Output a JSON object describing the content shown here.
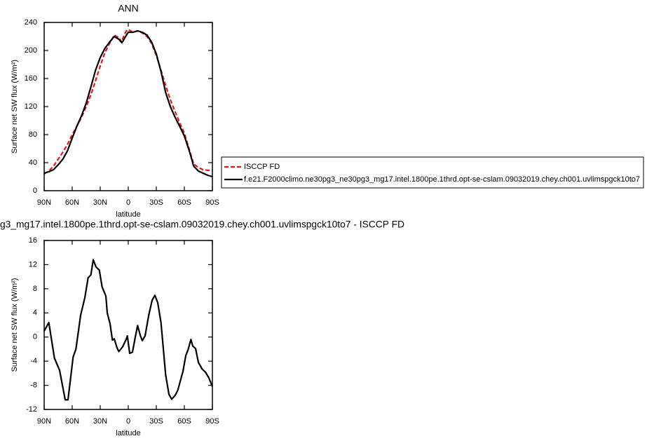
{
  "chart_data": [
    {
      "type": "line",
      "title": "ANN",
      "x_label": "latitude",
      "y_label": "Surface net SW flux (W/m²)",
      "xlim": [
        90,
        -90
      ],
      "xticks": [
        {
          "value": 90,
          "label": "90N"
        },
        {
          "value": 60,
          "label": "60N"
        },
        {
          "value": 30,
          "label": "30N"
        },
        0,
        {
          "value": -30,
          "label": "30S"
        },
        {
          "value": -60,
          "label": "60S"
        },
        {
          "value": -90,
          "label": "90S"
        }
      ],
      "ylim": [
        0,
        240
      ],
      "yticks": [
        0,
        40,
        80,
        120,
        160,
        200,
        240
      ],
      "x": [
        90,
        85,
        80,
        75,
        70,
        65,
        60,
        55,
        50,
        45,
        40,
        35,
        30,
        25,
        20,
        15,
        10,
        7,
        5,
        2,
        0,
        -5,
        -10,
        -15,
        -20,
        -25,
        -30,
        -35,
        -40,
        -45,
        -50,
        -55,
        -60,
        -65,
        -70,
        -75,
        -80,
        -85,
        -90
      ],
      "legend": "right",
      "series": [
        {
          "name": "ISCCP FD",
          "color": "#e8161d",
          "dashed": true,
          "values": [
            24,
            28,
            35,
            45,
            55,
            66,
            80,
            92,
            105,
            120,
            137,
            157,
            178,
            197,
            210,
            222,
            218,
            212,
            220,
            228,
            230,
            226,
            228,
            225,
            220,
            210,
            193,
            172,
            150,
            130,
            113,
            97,
            82,
            60,
            38,
            33,
            30,
            29,
            29
          ]
        },
        {
          "name": "f.e21.F2000climo.ne30pg3_ne30pg3_mg17.intel.1800pe.1thrd.opt-se-cslam.09032019.chey.ch001.uvlimspgck10to7",
          "color": "#000000",
          "dashed": false,
          "values": [
            25,
            27,
            30,
            37,
            45,
            57,
            75,
            92,
            107,
            125,
            148,
            172,
            190,
            203,
            212,
            220,
            216,
            211,
            215,
            222,
            226,
            226,
            228,
            226,
            222,
            212,
            195,
            170,
            140,
            120,
            105,
            92,
            78,
            58,
            35,
            28,
            25,
            22,
            20
          ]
        }
      ]
    },
    {
      "type": "line",
      "title": "g3_mg17.intel.1800pe.1thrd.opt-se-cslam.09032019.chey.ch001.uvlimspgck10to7 - ISCCP FD",
      "x_label": "latitude",
      "y_label": "Surface net SW flux (W/m²)",
      "xlim": [
        90,
        -90
      ],
      "xticks": [
        {
          "value": 90,
          "label": "90N"
        },
        {
          "value": 60,
          "label": "60N"
        },
        {
          "value": 30,
          "label": "30N"
        },
        0,
        {
          "value": -30,
          "label": "30S"
        },
        {
          "value": -60,
          "label": "60S"
        },
        {
          "value": -90,
          "label": "90S"
        }
      ],
      "ylim": [
        -12,
        16
      ],
      "yticks": [
        -12,
        -8,
        -4,
        0,
        4,
        8,
        12,
        16
      ],
      "x": [
        90,
        85,
        79,
        73.5,
        67.5,
        64.5,
        59,
        56,
        51,
        46.5,
        43,
        40,
        37.5,
        34.5,
        31,
        28,
        24,
        22.5,
        19.5,
        17,
        15,
        12,
        10,
        6,
        2,
        1,
        -1.5,
        -4.5,
        -7.5,
        -10,
        -13,
        -15,
        -18,
        -22,
        -25.5,
        -28.5,
        -31.5,
        -35,
        -40,
        -43.5,
        -46.5,
        -50,
        -53,
        -58.5,
        -61.5,
        -64,
        -67,
        -69,
        -72,
        -75,
        -79,
        -82.5,
        -86,
        -90
      ],
      "series": [
        {
          "color": "#000000",
          "dashed": false,
          "values": [
            1,
            2.4,
            -3.5,
            -5.5,
            -10.4,
            -10.4,
            -3.3,
            -2,
            3.6,
            6.5,
            9.8,
            10.3,
            12.8,
            11.6,
            11.1,
            8.3,
            6.8,
            4,
            2.2,
            -0.5,
            -0.3,
            -1.8,
            -2.4,
            -1.6,
            -0.3,
            0.2,
            -2.7,
            -2.5,
            0,
            1.9,
            0.2,
            -0.6,
            0.2,
            3.7,
            6.1,
            6.9,
            5.7,
            2.4,
            -6.3,
            -9.5,
            -10.3,
            -9.7,
            -8.8,
            -5.7,
            -3.1,
            -2.1,
            -0.4,
            -1.5,
            -1.9,
            -4.2,
            -5.3,
            -5.8,
            -6.7,
            -8.2
          ]
        }
      ]
    }
  ]
}
